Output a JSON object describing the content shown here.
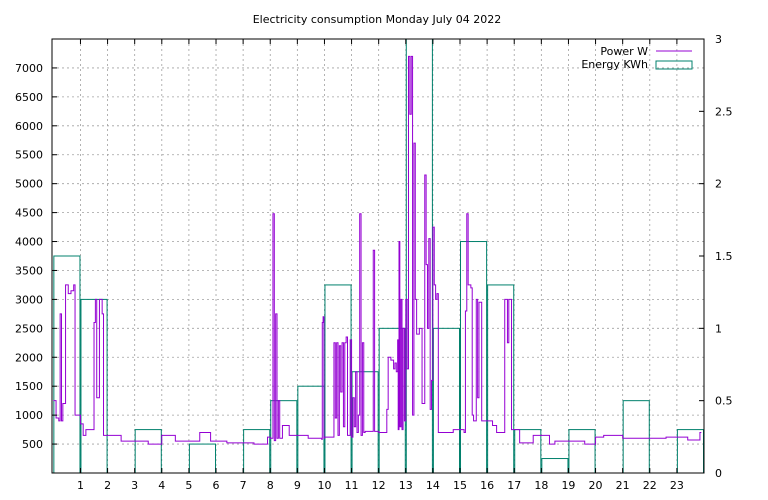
{
  "chart_data": {
    "type": "line",
    "title": "Electricity consumption Monday July 04 2022",
    "xlabel": "",
    "ylabel": "",
    "x_ticks": [
      1,
      2,
      3,
      4,
      5,
      6,
      7,
      8,
      9,
      10,
      11,
      12,
      13,
      14,
      15,
      16,
      17,
      18,
      19,
      20,
      21,
      22,
      23
    ],
    "xlim": [
      -0.05,
      24
    ],
    "y_left": {
      "ticks": [
        500,
        1000,
        1500,
        2000,
        2500,
        3000,
        3500,
        4000,
        4500,
        5000,
        5500,
        6000,
        6500,
        7000
      ],
      "lim": [
        0,
        7500
      ]
    },
    "y_right": {
      "ticks": [
        0,
        0.5,
        1,
        1.5,
        2,
        2.5,
        3
      ],
      "lim": [
        0,
        3
      ]
    },
    "grid": true,
    "legend_position": "top-right",
    "series": [
      {
        "name": "Power W",
        "axis": "left",
        "color": "#9400d3",
        "style": "steps",
        "points": [
          [
            0,
            1250
          ],
          [
            0.1,
            950
          ],
          [
            0.2,
            900
          ],
          [
            0.25,
            2750
          ],
          [
            0.3,
            900
          ],
          [
            0.35,
            1200
          ],
          [
            0.45,
            3250
          ],
          [
            0.55,
            3100
          ],
          [
            0.65,
            3150
          ],
          [
            0.75,
            3250
          ],
          [
            0.8,
            1000
          ],
          [
            0.9,
            1000
          ],
          [
            1.0,
            850
          ],
          [
            1.1,
            650
          ],
          [
            1.2,
            750
          ],
          [
            1.3,
            750
          ],
          [
            1.5,
            2600
          ],
          [
            1.55,
            3000
          ],
          [
            1.6,
            1300
          ],
          [
            1.7,
            3000
          ],
          [
            1.8,
            2750
          ],
          [
            1.85,
            650
          ],
          [
            2.3,
            650
          ],
          [
            2.5,
            550
          ],
          [
            3.4,
            550
          ],
          [
            3.5,
            500
          ],
          [
            3.9,
            500
          ],
          [
            4.0,
            650
          ],
          [
            4.4,
            650
          ],
          [
            4.5,
            550
          ],
          [
            5.3,
            550
          ],
          [
            5.4,
            700
          ],
          [
            5.7,
            700
          ],
          [
            5.8,
            550
          ],
          [
            6.2,
            550
          ],
          [
            6.4,
            520
          ],
          [
            7.2,
            520
          ],
          [
            7.4,
            500
          ],
          [
            7.8,
            500
          ],
          [
            7.9,
            620
          ],
          [
            8.0,
            600
          ],
          [
            8.1,
            4480
          ],
          [
            8.15,
            560
          ],
          [
            8.2,
            2750
          ],
          [
            8.25,
            600
          ],
          [
            8.3,
            1250
          ],
          [
            8.35,
            600
          ],
          [
            8.45,
            820
          ],
          [
            8.6,
            820
          ],
          [
            8.7,
            650
          ],
          [
            9.3,
            650
          ],
          [
            9.4,
            600
          ],
          [
            9.8,
            600
          ],
          [
            9.9,
            580
          ],
          [
            9.92,
            2600
          ],
          [
            9.95,
            2700
          ],
          [
            9.98,
            600
          ],
          [
            10.0,
            620
          ],
          [
            10.3,
            620
          ],
          [
            10.35,
            2250
          ],
          [
            10.4,
            950
          ],
          [
            10.45,
            2250
          ],
          [
            10.5,
            650
          ],
          [
            10.55,
            2200
          ],
          [
            10.6,
            1400
          ],
          [
            10.65,
            2250
          ],
          [
            10.7,
            800
          ],
          [
            10.75,
            2250
          ],
          [
            10.8,
            2350
          ],
          [
            10.85,
            650
          ],
          [
            10.95,
            2300
          ],
          [
            11.0,
            620
          ],
          [
            11.05,
            1300
          ],
          [
            11.1,
            800
          ],
          [
            11.15,
            1750
          ],
          [
            11.2,
            700
          ],
          [
            11.25,
            1000
          ],
          [
            11.3,
            4480
          ],
          [
            11.35,
            650
          ],
          [
            11.4,
            2250
          ],
          [
            11.45,
            700
          ],
          [
            11.5,
            720
          ],
          [
            11.75,
            720
          ],
          [
            11.8,
            3850
          ],
          [
            11.85,
            720
          ],
          [
            12.0,
            700
          ],
          [
            12.25,
            700
          ],
          [
            12.3,
            1100
          ],
          [
            12.35,
            2000
          ],
          [
            12.45,
            1950
          ],
          [
            12.55,
            1800
          ],
          [
            12.6,
            1900
          ],
          [
            12.65,
            1750
          ],
          [
            12.7,
            2300
          ],
          [
            12.72,
            750
          ],
          [
            12.75,
            4000
          ],
          [
            12.78,
            800
          ],
          [
            12.82,
            3000
          ],
          [
            12.86,
            750
          ],
          [
            12.9,
            2500
          ],
          [
            12.95,
            900
          ],
          [
            13.0,
            3000
          ],
          [
            13.05,
            1800
          ],
          [
            13.1,
            7200
          ],
          [
            13.15,
            6200
          ],
          [
            13.2,
            7200
          ],
          [
            13.25,
            1000
          ],
          [
            13.3,
            5700
          ],
          [
            13.35,
            3000
          ],
          [
            13.4,
            2400
          ],
          [
            13.5,
            2500
          ],
          [
            13.6,
            1200
          ],
          [
            13.7,
            5150
          ],
          [
            13.75,
            3600
          ],
          [
            13.8,
            2500
          ],
          [
            13.85,
            4050
          ],
          [
            13.9,
            1100
          ],
          [
            13.95,
            1600
          ],
          [
            14.0,
            4250
          ],
          [
            14.05,
            3250
          ],
          [
            14.1,
            3000
          ],
          [
            14.15,
            3100
          ],
          [
            14.2,
            700
          ],
          [
            14.7,
            700
          ],
          [
            14.75,
            750
          ],
          [
            15.1,
            750
          ],
          [
            15.15,
            700
          ],
          [
            15.2,
            2800
          ],
          [
            15.25,
            4480
          ],
          [
            15.3,
            3250
          ],
          [
            15.4,
            3200
          ],
          [
            15.45,
            1000
          ],
          [
            15.5,
            900
          ],
          [
            15.6,
            3000
          ],
          [
            15.65,
            1300
          ],
          [
            15.7,
            2950
          ],
          [
            15.8,
            900
          ],
          [
            16.1,
            900
          ],
          [
            16.2,
            820
          ],
          [
            16.3,
            820
          ],
          [
            16.35,
            700
          ],
          [
            16.6,
            700
          ],
          [
            16.65,
            3000
          ],
          [
            16.75,
            2250
          ],
          [
            16.8,
            3000
          ],
          [
            16.9,
            750
          ],
          [
            17.1,
            750
          ],
          [
            17.2,
            520
          ],
          [
            17.6,
            520
          ],
          [
            17.7,
            650
          ],
          [
            18.2,
            650
          ],
          [
            18.3,
            500
          ],
          [
            18.5,
            550
          ],
          [
            19.5,
            550
          ],
          [
            19.6,
            500
          ],
          [
            19.9,
            500
          ],
          [
            20.0,
            620
          ],
          [
            20.3,
            650
          ],
          [
            20.9,
            650
          ],
          [
            21.0,
            600
          ],
          [
            21.4,
            600
          ],
          [
            22.5,
            600
          ],
          [
            22.6,
            620
          ],
          [
            23.3,
            620
          ],
          [
            23.4,
            570
          ],
          [
            23.8,
            570
          ],
          [
            23.85,
            700
          ],
          [
            23.9,
            700
          ]
        ]
      },
      {
        "name": "Energy KWh",
        "axis": "right",
        "color": "#00806c",
        "style": "histogram",
        "bars": [
          [
            0,
            1.5
          ],
          [
            1,
            1.2
          ],
          [
            2,
            0
          ],
          [
            3,
            0.3
          ],
          [
            4,
            0
          ],
          [
            5,
            0.2
          ],
          [
            6,
            0
          ],
          [
            7,
            0.3
          ],
          [
            8,
            0.5
          ],
          [
            9,
            0.6
          ],
          [
            10,
            1.3
          ],
          [
            11,
            0.7
          ],
          [
            12,
            1.0
          ],
          [
            13,
            3.0
          ],
          [
            14,
            1.0
          ],
          [
            15,
            1.6
          ],
          [
            16,
            1.3
          ],
          [
            17,
            0.3
          ],
          [
            18,
            0.1
          ],
          [
            19,
            0.3
          ],
          [
            20,
            0
          ],
          [
            21,
            0.5
          ],
          [
            22,
            0
          ],
          [
            23,
            0.3
          ]
        ]
      }
    ]
  }
}
